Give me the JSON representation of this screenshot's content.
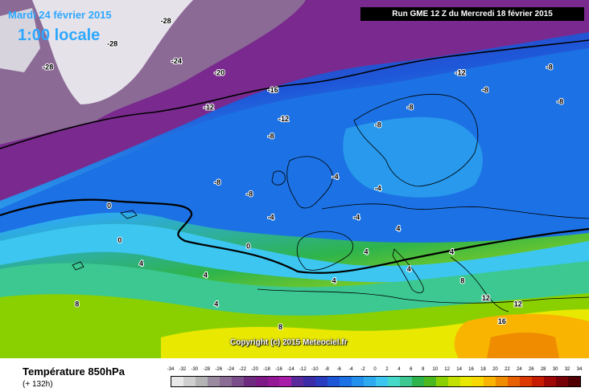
{
  "title": {
    "date": "Mardi 24 février 2015",
    "time": "1:00 locale"
  },
  "run_label": "Run GME 12 Z du Mercredi 18 février 2015",
  "copyright": "Copyright (c) 2015 Meteociel.fr",
  "legend": {
    "variable": "Température 850hPa",
    "lead_time": "(+ 132h)",
    "ticks": [
      "-34",
      "-32",
      "-30",
      "-28",
      "-26",
      "-24",
      "-22",
      "-20",
      "-18",
      "-16",
      "-14",
      "-12",
      "-10",
      "-8",
      "-6",
      "-4",
      "-2",
      "0",
      "2",
      "4",
      "6",
      "8",
      "10",
      "12",
      "14",
      "16",
      "18",
      "20",
      "22",
      "24",
      "26",
      "28",
      "30",
      "32",
      "34"
    ],
    "colors": [
      "#e8e8e8",
      "#cfcfcf",
      "#b4b4b4",
      "#9a8aa0",
      "#8a6c94",
      "#7a4e8a",
      "#6e2c80",
      "#7e1a86",
      "#941896",
      "#a81ca8",
      "#5a2a9c",
      "#3c2ca8",
      "#2a3cc0",
      "#1e56d8",
      "#1c72e4",
      "#2290ec",
      "#2eaaf0",
      "#3cc6f0",
      "#46d8c8",
      "#3cc890",
      "#2eb44c",
      "#4cb820",
      "#8ad000",
      "#c4e000",
      "#e8e800",
      "#f8d800",
      "#f8b400",
      "#f08c00",
      "#e86000",
      "#dc3800",
      "#c81c00",
      "#a00808",
      "#780008",
      "#500004"
    ]
  },
  "map_labels": [
    {
      "text": "-28",
      "lon": -52,
      "lat": 68
    },
    {
      "text": "-28",
      "lon": -40,
      "lat": 72
    },
    {
      "text": "-28",
      "lon": -30,
      "lat": 76
    },
    {
      "text": "-24",
      "lon": -28,
      "lat": 69
    },
    {
      "text": "-20",
      "lon": -20,
      "lat": 67
    },
    {
      "text": "-16",
      "lon": -10,
      "lat": 64
    },
    {
      "text": "-12",
      "lon": -22,
      "lat": 61
    },
    {
      "text": "-12",
      "lon": -8,
      "lat": 59
    },
    {
      "text": "-8",
      "lon": -10,
      "lat": 56
    },
    {
      "text": "-8",
      "lon": -20,
      "lat": 48
    },
    {
      "text": "-8",
      "lon": -14,
      "lat": 46
    },
    {
      "text": "-4",
      "lon": -10,
      "lat": 42
    },
    {
      "text": "0",
      "lon": -40,
      "lat": 44
    },
    {
      "text": "0",
      "lon": -38,
      "lat": 38
    },
    {
      "text": "0",
      "lon": -14,
      "lat": 37
    },
    {
      "text": "4",
      "lon": -34,
      "lat": 34
    },
    {
      "text": "4",
      "lon": -22,
      "lat": 32
    },
    {
      "text": "4",
      "lon": -20,
      "lat": 27
    },
    {
      "text": "8",
      "lon": -46,
      "lat": 27
    },
    {
      "text": "8",
      "lon": -8,
      "lat": 23
    },
    {
      "text": "-4",
      "lon": 2,
      "lat": 49
    },
    {
      "text": "-4",
      "lon": 10,
      "lat": 47
    },
    {
      "text": "-4",
      "lon": 6,
      "lat": 42
    },
    {
      "text": "-8",
      "lon": 10,
      "lat": 58
    },
    {
      "text": "-8",
      "lon": 16,
      "lat": 61
    },
    {
      "text": "-12",
      "lon": 25,
      "lat": 67
    },
    {
      "text": "-8",
      "lon": 30,
      "lat": 64
    },
    {
      "text": "-8",
      "lon": 42,
      "lat": 68
    },
    {
      "text": "-8",
      "lon": 44,
      "lat": 62
    },
    {
      "text": "4",
      "lon": 14,
      "lat": 40
    },
    {
      "text": "4",
      "lon": 8,
      "lat": 36
    },
    {
      "text": "4",
      "lon": 16,
      "lat": 33
    },
    {
      "text": "4",
      "lon": 2,
      "lat": 31
    },
    {
      "text": "4",
      "lon": 24,
      "lat": 36
    },
    {
      "text": "8",
      "lon": 26,
      "lat": 31
    },
    {
      "text": "12",
      "lon": 30,
      "lat": 28
    },
    {
      "text": "12",
      "lon": 36,
      "lat": 27
    },
    {
      "text": "16",
      "lon": 33,
      "lat": 24
    }
  ]
}
